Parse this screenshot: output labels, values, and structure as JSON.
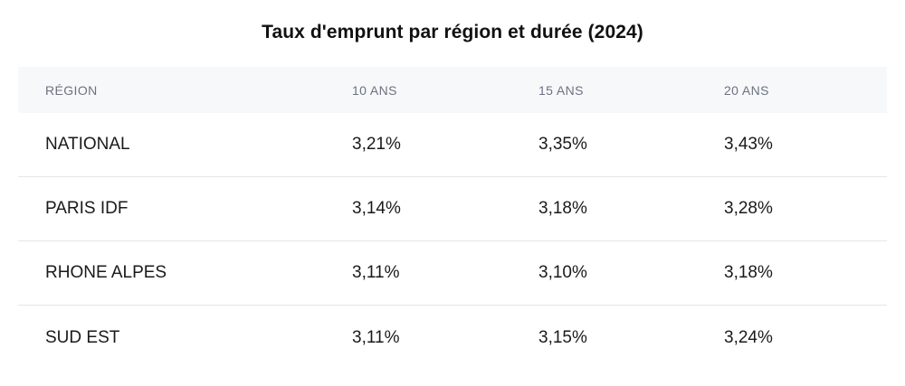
{
  "chart_data": {
    "type": "table",
    "title": "Taux d'emprunt par région et durée (2024)",
    "columns": [
      "RÉGION",
      "10 ANS",
      "15 ANS",
      "20 ANS"
    ],
    "rows": [
      [
        "NATIONAL",
        "3,21%",
        "3,35%",
        "3,43%"
      ],
      [
        "PARIS IDF",
        "3,14%",
        "3,18%",
        "3,28%"
      ],
      [
        "RHONE ALPES",
        "3,11%",
        "3,10%",
        "3,18%"
      ],
      [
        "SUD EST",
        "3,11%",
        "3,15%",
        "3,24%"
      ]
    ]
  },
  "colors": {
    "header_background": "#f7f8fa",
    "header_text": "#6b7280",
    "divider": "#e4e6ea",
    "body_text": "#1a1a1a"
  }
}
